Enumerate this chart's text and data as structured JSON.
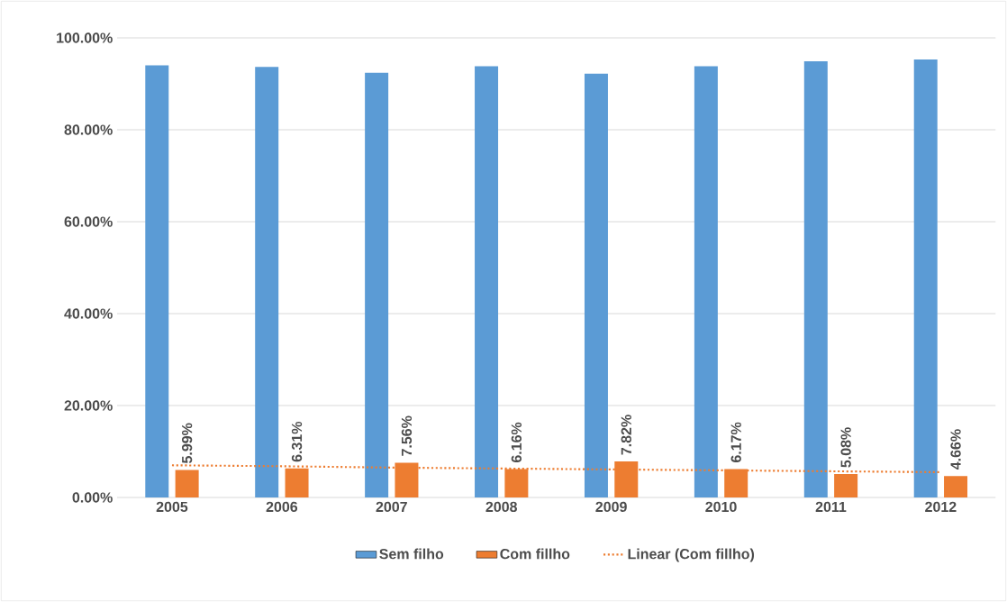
{
  "chart_data": {
    "type": "bar",
    "categories": [
      "2005",
      "2006",
      "2007",
      "2008",
      "2009",
      "2010",
      "2011",
      "2012"
    ],
    "series": [
      {
        "name": "Sem filho",
        "color": "#5b9bd5",
        "values": [
          94.0,
          93.7,
          92.4,
          93.8,
          92.2,
          93.8,
          94.9,
          95.3
        ]
      },
      {
        "name": "Com fillho",
        "color": "#ed7d31",
        "values": [
          5.99,
          6.31,
          7.56,
          6.16,
          7.82,
          6.17,
          5.08,
          4.66
        ],
        "value_labels": [
          "5.99%",
          "6.31%",
          "7.56%",
          "6.16%",
          "7.82%",
          "6.17%",
          "5.08%",
          "4.66%"
        ]
      },
      {
        "name": "Linear (Com fillho)",
        "type": "line",
        "line_style": "dotted",
        "color": "#ed7d31",
        "values": [
          7.0,
          6.8,
          6.5,
          6.3,
          6.1,
          5.9,
          5.7,
          5.5
        ]
      }
    ],
    "ylim": [
      0,
      100
    ],
    "yticks": [
      {
        "value": 0,
        "label": "0.00%"
      },
      {
        "value": 20,
        "label": "20.00%"
      },
      {
        "value": 40,
        "label": "40.00%"
      },
      {
        "value": 60,
        "label": "60.00%"
      },
      {
        "value": 80,
        "label": "80.00%"
      },
      {
        "value": 100,
        "label": "100.00%"
      }
    ],
    "grid": "y",
    "legend": "bottom"
  }
}
